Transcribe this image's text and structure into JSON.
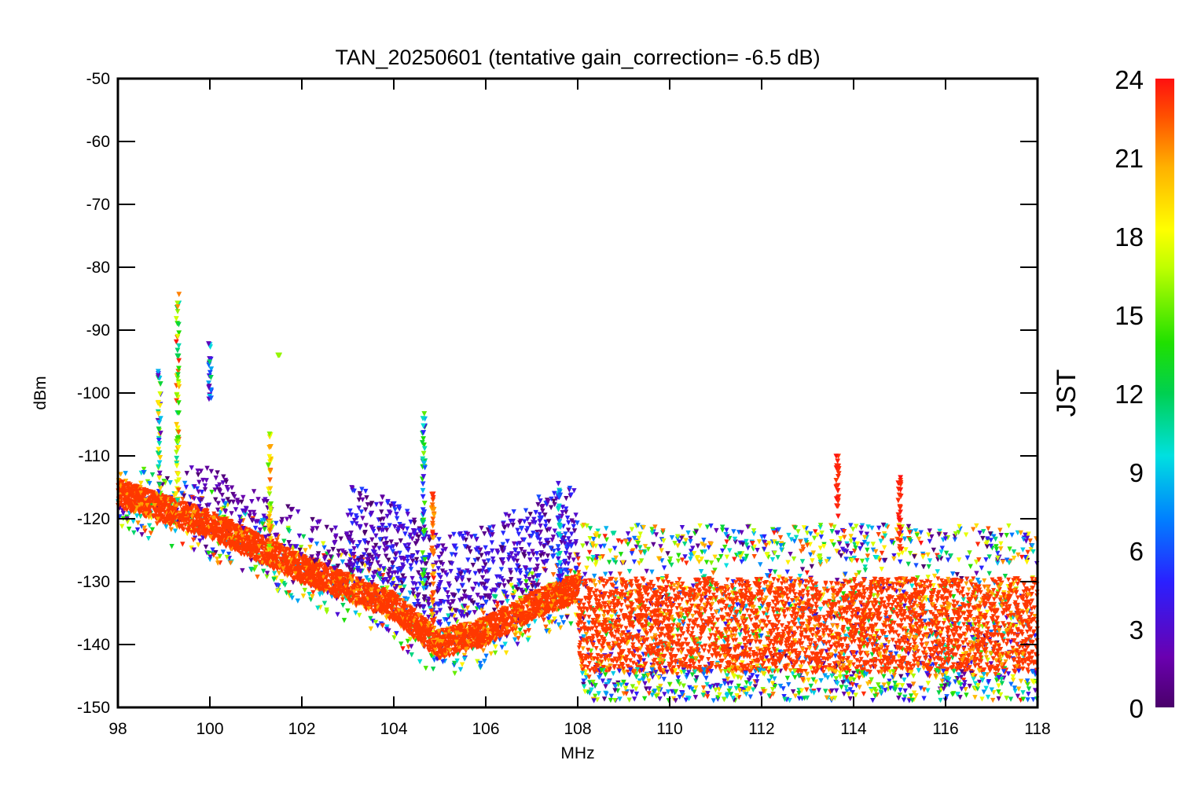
{
  "chart_data": {
    "type": "scatter",
    "title": "TAN_20250601 (tentative gain_correction= -6.5 dB)",
    "xlabel": "MHz",
    "ylabel": "dBm",
    "xlim": [
      98,
      118
    ],
    "ylim": [
      -150,
      -50
    ],
    "x_ticks": [
      "98",
      "100",
      "102",
      "104",
      "106",
      "108",
      "110",
      "112",
      "114",
      "116",
      "118"
    ],
    "y_ticks": [
      "-50",
      "-60",
      "-70",
      "-80",
      "-90",
      "-100",
      "-110",
      "-120",
      "-130",
      "-140",
      "-150"
    ],
    "grid": false,
    "colorbar": {
      "title": "JST",
      "range": [
        0,
        24
      ],
      "ticks": [
        "0",
        "3",
        "6",
        "9",
        "12",
        "15",
        "18",
        "21",
        "24"
      ],
      "colormap": "rainbow"
    },
    "noise_floor": {
      "description_points_x": [
        98,
        100,
        102,
        104,
        104.8,
        105,
        106,
        107,
        108,
        108.05,
        110,
        111,
        111.5,
        111.8,
        112.2,
        114,
        116,
        117.5,
        118
      ],
      "median_dBm": [
        -116,
        -121,
        -128,
        -134,
        -139,
        -140,
        -138,
        -134,
        -131,
        -137,
        -137,
        -137,
        -137,
        -137,
        -137,
        -137,
        -137,
        -137,
        -137
      ]
    },
    "series": [
      {
        "x": 99.3,
        "y_top": -84,
        "y_bottom": -118,
        "hours": [
          10,
          24
        ]
      },
      {
        "x": 98.9,
        "y_top": -96,
        "y_bottom": -116,
        "hours": [
          2,
          20
        ]
      },
      {
        "x": 100.0,
        "y_top": -92,
        "y_bottom": -101,
        "hours": [
          1,
          12
        ]
      },
      {
        "x": 101.3,
        "y_top": -106,
        "y_bottom": -126,
        "hours": [
          14,
          24
        ]
      },
      {
        "x": 101.5,
        "y_top": -94,
        "y_bottom": -94,
        "hours": [
          16,
          16
        ]
      },
      {
        "x": 104.65,
        "y_top": -103,
        "y_bottom": -132,
        "hours": [
          3,
          16
        ]
      },
      {
        "x": 104.85,
        "y_top": -115,
        "y_bottom": -140,
        "hours": [
          20,
          24
        ]
      },
      {
        "x": 107.6,
        "y_top": -114,
        "y_bottom": -130,
        "hours": [
          3,
          12
        ]
      },
      {
        "x": 113.65,
        "y_top": -110,
        "y_bottom": -120,
        "hours": [
          23,
          24
        ]
      },
      {
        "x": 115.0,
        "y_top": -113,
        "y_bottom": -125,
        "hours": [
          23,
          24
        ]
      }
    ]
  }
}
